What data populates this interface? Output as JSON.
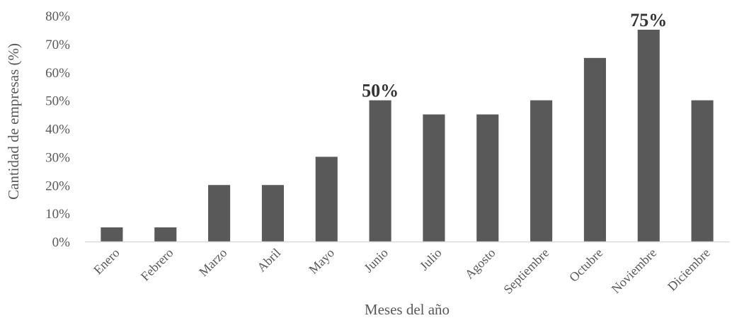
{
  "chart_data": {
    "type": "bar",
    "title": "",
    "xlabel": "Meses del año",
    "ylabel": "Cantidad de empresas (%)",
    "categories": [
      "Enero",
      "Febrero",
      "Marzo",
      "Abril",
      "Mayo",
      "Junio",
      "Julio",
      "Agosto",
      "Septiembre",
      "Octubre",
      "Noviembre",
      "Diciembre"
    ],
    "values": [
      5,
      5,
      20,
      20,
      30,
      50,
      45,
      45,
      50,
      65,
      75,
      50
    ],
    "ylim": [
      0,
      80
    ],
    "yticks": [
      "0%",
      "10%",
      "20%",
      "30%",
      "40%",
      "50%",
      "60%",
      "70%",
      "80%"
    ],
    "data_labels": [
      {
        "category": "Junio",
        "text": "50%"
      },
      {
        "category": "Noviembre",
        "text": "75%"
      }
    ],
    "bar_color": "#595959",
    "grid": false,
    "legend": "none"
  }
}
